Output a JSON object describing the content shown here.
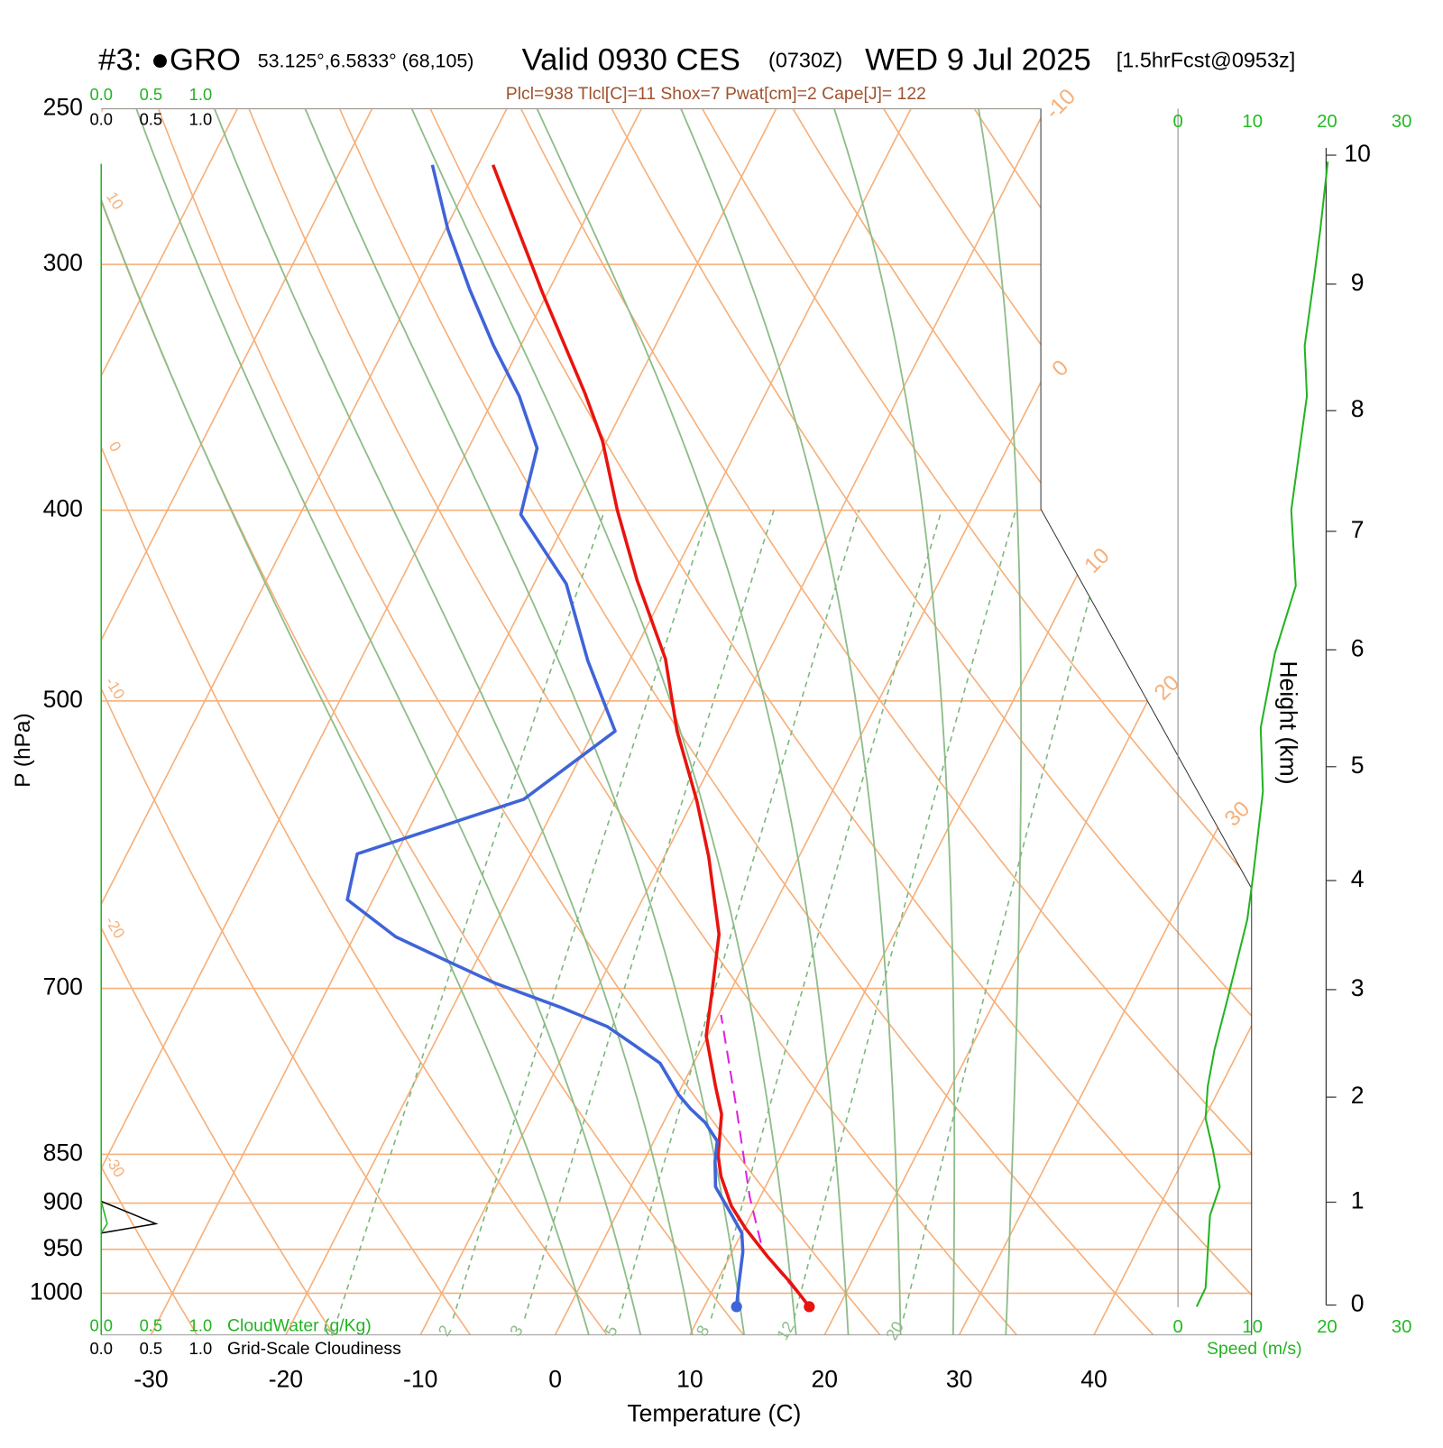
{
  "chart_data": {
    "type": "skewt",
    "title": "#3: ●GRO",
    "location": "53.125°,6.5833° (68,105)",
    "valid": "Valid 0930 CES",
    "valid_utc": "(0730Z)",
    "date": "WED 9 Jul 2025",
    "forecast": "[1.5hrFcst@0953z]",
    "indices": "Plcl=938 Tlcl[C]=11 Shox=7 Pwat[cm]=2 Cape[J]= 122",
    "ylabel": "P (hPa)",
    "xlabel": "Temperature (C)",
    "log_y": true,
    "ylim": [
      1050,
      250
    ],
    "yticks": [
      250,
      300,
      400,
      500,
      700,
      850,
      900,
      950,
      1000
    ],
    "xlim": [
      -33.7,
      51.7
    ],
    "xticks": [
      -30,
      -20,
      -10,
      0,
      10,
      20,
      30,
      40
    ],
    "isotherms": [
      -80,
      -70,
      -60,
      -50,
      -40,
      -30,
      -20,
      -10,
      0,
      10,
      20,
      30,
      40
    ],
    "dry_adiabats": [
      -30,
      -20,
      -10,
      0,
      10,
      20,
      30,
      40,
      50,
      60,
      70,
      80,
      90,
      100,
      110,
      120
    ],
    "moist_adiabats": [
      0,
      4,
      8,
      12,
      16,
      20,
      24,
      28,
      32
    ],
    "mixing_ratios": [
      1,
      2,
      3,
      5,
      8,
      12,
      20
    ],
    "temperature": {
      "color": "#e8140f",
      "pressure": [
        1016,
        989,
        958,
        927,
        903,
        872,
        851,
        811,
        785,
        740,
        701,
        657,
        600,
        562,
        518,
        476,
        434,
        400,
        369,
        349,
        310,
        267
      ],
      "values": [
        17.8,
        15.6,
        12.8,
        10.1,
        8.2,
        6.3,
        5.3,
        4.0,
        2.5,
        -0.1,
        -1.4,
        -3.0,
        -6.7,
        -9.7,
        -13.8,
        -17.4,
        -22.5,
        -26.6,
        -30.3,
        -33.4,
        -40.4,
        -48.9
      ]
    },
    "dewpoint": {
      "color": "#3f64d8",
      "pressure": [
        1016,
        989,
        953,
        932,
        913,
        883,
        857,
        837,
        819,
        806,
        793,
        764,
        748,
        732,
        716,
        696,
        679,
        659,
        631,
        598,
        561,
        518,
        477,
        436,
        402,
        372,
        350,
        330,
        309,
        288,
        267
      ],
      "values": [
        12.4,
        11.7,
        10.8,
        10.0,
        8.6,
        6.3,
        5.3,
        4.7,
        3.1,
        1.5,
        0.1,
        -2.5,
        -5.1,
        -7.8,
        -11.9,
        -17.7,
        -21.9,
        -26.9,
        -31.9,
        -32.9,
        -22.6,
        -18.4,
        -23.1,
        -27.6,
        -33.6,
        -34.9,
        -38.2,
        -42.0,
        -45.9,
        -49.8,
        -53.4
      ]
    },
    "parcel": {
      "color": "#e020e0",
      "dashed": true,
      "pressure": [
        1016,
        953,
        893,
        802,
        722
      ],
      "values": [
        17.8,
        12.3,
        9.2,
        4.7,
        0.2
      ]
    },
    "cloud": {
      "pressure": [
        898,
        922,
        932
      ],
      "cloudiness": [
        0,
        0.55,
        0
      ],
      "cloud_water": [
        0,
        0.06,
        0
      ],
      "cloud_water_color": "#22b422",
      "cloudiness_color": "#000000",
      "cloud_water_ticks": [
        {
          "value": 0,
          "label": "0.0"
        },
        {
          "value": 0.5,
          "label": "0.5"
        },
        {
          "value": 1,
          "label": "1.0"
        }
      ],
      "cloudiness_ticks": [
        {
          "value": 0,
          "label": "0.0"
        },
        {
          "value": 0.5,
          "label": "0.5"
        },
        {
          "value": 1,
          "label": "1.0"
        }
      ],
      "cloud_water_label": "CloudWater (g/Kg)",
      "cloudiness_label": "Grid-Scale Cloudiness"
    },
    "height": {
      "label": "Height (km)",
      "ticks": [
        0,
        1,
        2,
        3,
        4,
        5,
        6,
        7,
        8,
        9,
        10
      ],
      "pressure": [
        1014,
        899,
        795,
        701,
        617,
        540,
        471,
        410,
        356,
        307,
        264
      ]
    },
    "wind": {
      "label": "Speed (m/s)",
      "color": "#22b422",
      "xlim": [
        0,
        30
      ],
      "xticks": [
        0,
        10,
        20,
        30
      ],
      "pressure": [
        1016,
        994,
        953,
        913,
        883,
        846,
        815,
        785,
        752,
        705,
        646,
        613,
        556,
        516,
        473,
        437,
        400,
        350,
        330,
        304,
        288,
        266
      ],
      "values": [
        2.5,
        3.7,
        4.0,
        4.3,
        5.6,
        4.7,
        3.7,
        4.0,
        4.9,
        6.8,
        9.3,
        10.1,
        11.4,
        11.1,
        13.0,
        15.8,
        15.2,
        17.3,
        17.0,
        18.3,
        19.1,
        20.1
      ]
    }
  }
}
